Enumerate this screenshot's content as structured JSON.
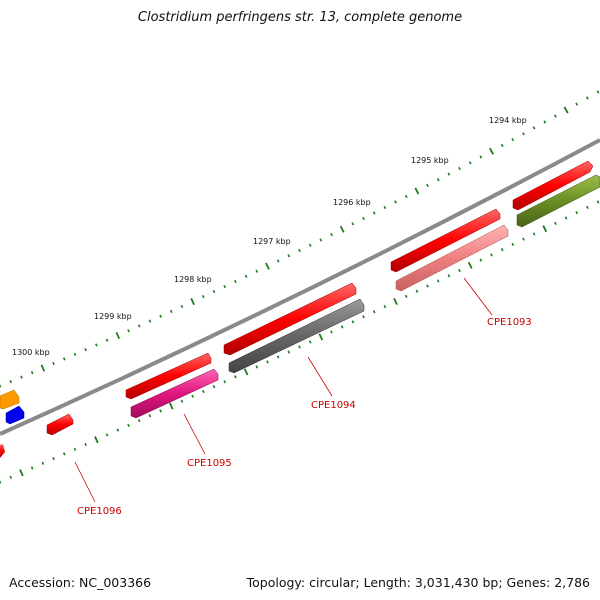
{
  "title": "Clostridium perfringens str. 13, complete genome",
  "accession": "Accession: NC_003366",
  "topology": "Topology: circular; Length: 3,031,430 bp; Genes: 2,786",
  "kbp_labels": [
    "1294 kbp",
    "1295 kbp",
    "1296 kbp",
    "1297 kbp",
    "1298 kbp",
    "1299 kbp",
    "1300 kbp"
  ],
  "gene_labels": [
    "CPE1093",
    "CPE1094",
    "CPE1095",
    "CPE1096"
  ],
  "colors": {
    "backbone": "#8a8a8a",
    "tick": "#1f7a1f",
    "gene_red": "#ff0000",
    "label_red": "#cc0000",
    "pink": "#f08080",
    "gray": "#666666",
    "magenta": "#e0157f",
    "olive": "#6b8e23",
    "orange": "#ff9900",
    "blue": "#0000ee"
  }
}
